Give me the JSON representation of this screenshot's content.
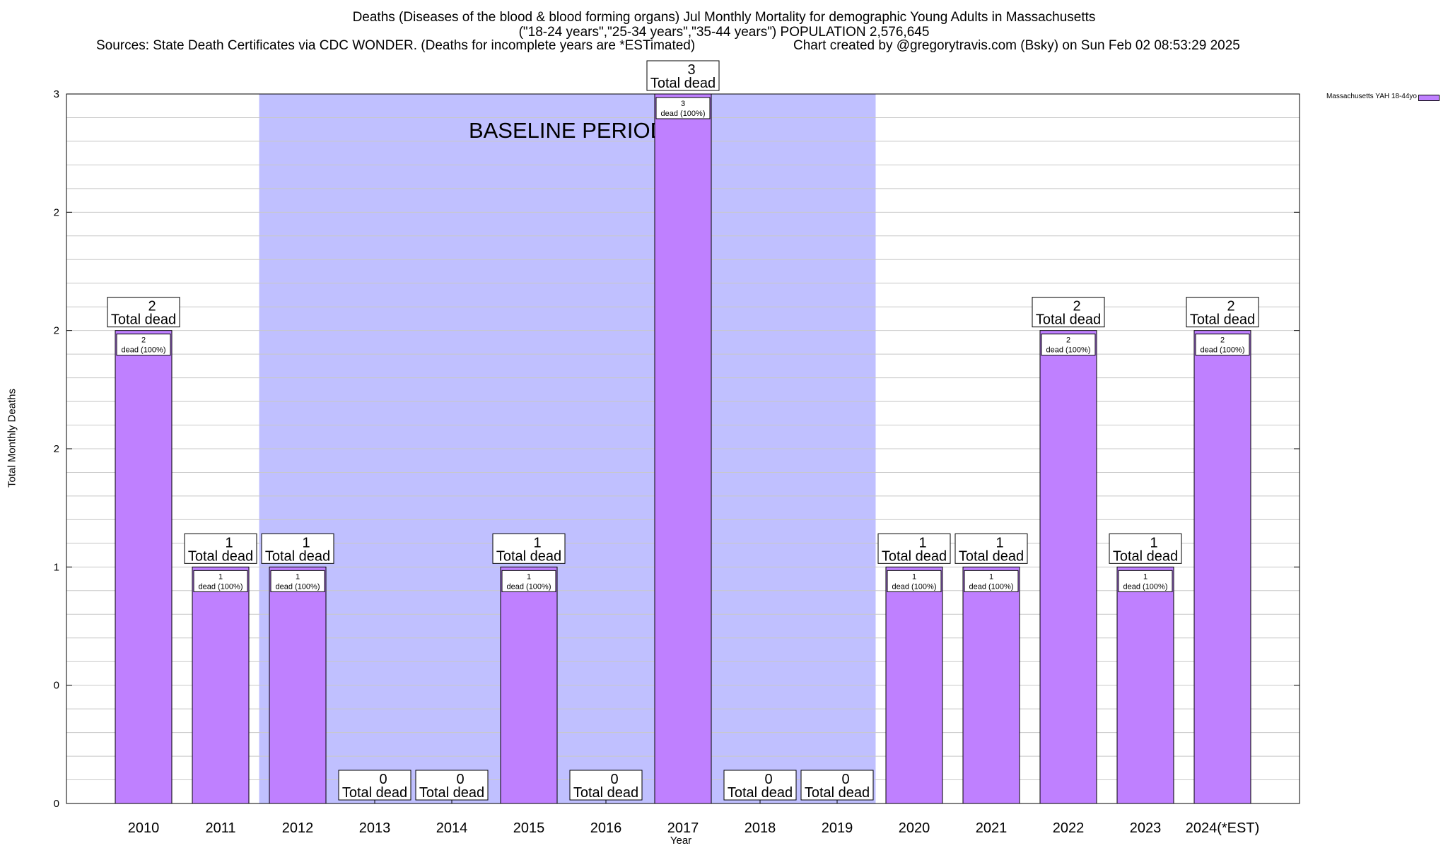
{
  "header": {
    "title_line1": "Deaths (Diseases of the blood & blood forming organs) Jul Monthly Mortality for demographic Young Adults in Massachusetts",
    "title_line2": "(\"18-24 years\",\"25-34 years\",\"35-44 years\") POPULATION 2,576,645",
    "sources": "Sources: State Death Certificates via CDC WONDER. (Deaths for incomplete years are *ESTimated)",
    "credit": "Chart created by @gregorytravis.com (Bsky) on Sun Feb 02 08:53:29 2025"
  },
  "colors": {
    "bar": "#bf80ff",
    "baseline_band": "#c0c0ff",
    "grid": "#c8c8c8",
    "axis": "#000000"
  },
  "chart_data": {
    "type": "bar",
    "title": "Deaths (Diseases of the blood & blood forming organs) Jul Monthly Mortality for demographic Young Adults in Massachusetts",
    "xlabel": "Year",
    "ylabel": "Total Monthly Deaths",
    "categories": [
      "2010",
      "2011",
      "2012",
      "2013",
      "2014",
      "2015",
      "2016",
      "2017",
      "2018",
      "2019",
      "2020",
      "2021",
      "2022",
      "2023",
      "2024(*EST)"
    ],
    "series": [
      {
        "name": "Massachusetts YAH 18-44yo",
        "values": [
          2,
          1,
          1,
          0,
          0,
          1,
          0,
          3,
          0,
          0,
          1,
          1,
          2,
          1,
          2
        ]
      }
    ],
    "ylim": [
      0,
      3
    ],
    "yticks": [
      {
        "value": 0,
        "label": "0"
      },
      {
        "value": 0.5,
        "label": "0"
      },
      {
        "value": 1,
        "label": "1"
      },
      {
        "value": 1.5,
        "label": "2"
      },
      {
        "value": 2,
        "label": "2"
      },
      {
        "value": 2.5,
        "label": "2"
      },
      {
        "value": 3,
        "label": "3"
      }
    ],
    "baseline_period": {
      "label": "BASELINE PERIOD",
      "from": "2012",
      "to": "2019"
    },
    "total_label_suffix": "Total dead",
    "bar_label_suffix": "dead (100%)",
    "legend": {
      "entry": "Massachusetts YAH 18-44yo",
      "position": "top-right"
    },
    "grid": true
  }
}
